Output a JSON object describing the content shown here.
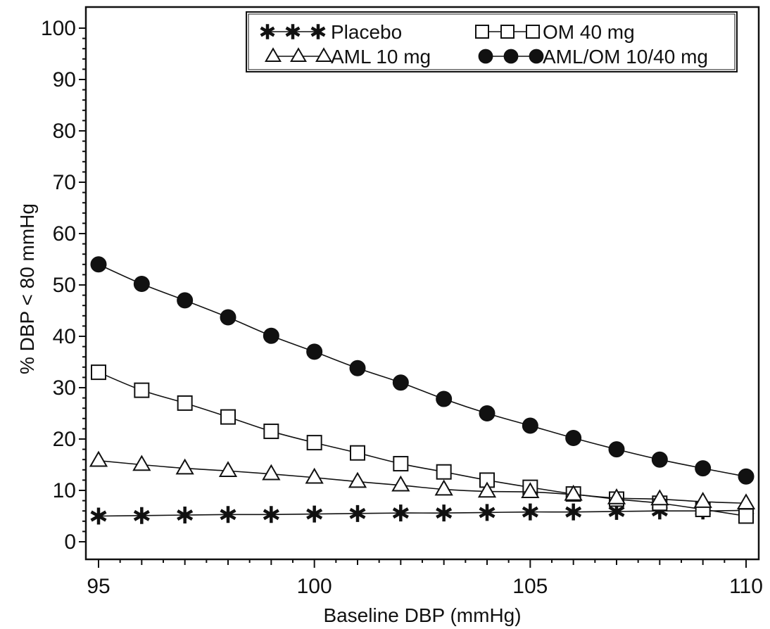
{
  "chart_data": {
    "type": "line",
    "title": "",
    "xlabel": "Baseline DBP (mmHg)",
    "ylabel": "% DBP < 80 mmHg",
    "xlim": [
      95,
      110
    ],
    "ylim": [
      -3,
      104
    ],
    "x_ticks": [
      95,
      100,
      105,
      110
    ],
    "y_ticks": [
      0,
      10,
      20,
      30,
      40,
      50,
      60,
      70,
      80,
      90,
      100
    ],
    "grid": false,
    "legend_position": "top-right",
    "x": [
      95,
      96,
      97,
      98,
      99,
      100,
      101,
      102,
      103,
      104,
      105,
      106,
      107,
      108,
      109,
      110
    ],
    "series": [
      {
        "name": "Placebo",
        "marker": "star",
        "values": [
          5.0,
          5.1,
          5.2,
          5.3,
          5.3,
          5.4,
          5.5,
          5.6,
          5.6,
          5.7,
          5.8,
          5.8,
          5.9,
          6.0,
          6.0,
          6.1
        ],
        "fit": [
          5.2,
          6.2
        ]
      },
      {
        "name": "OM 40 mg",
        "marker": "square",
        "values": [
          33.0,
          29.5,
          27.0,
          24.3,
          21.5,
          19.3,
          17.3,
          15.2,
          13.6,
          12.0,
          10.6,
          9.3,
          8.3,
          7.5,
          6.3,
          5.0
        ],
        "fit": [
          33.0,
          5.2
        ]
      },
      {
        "name": "AML 10 mg",
        "marker": "triangle",
        "values": [
          15.8,
          15.0,
          14.3,
          13.8,
          13.2,
          12.5,
          11.7,
          11.0,
          10.2,
          9.8,
          9.7,
          9.2,
          8.5,
          8.3,
          7.8,
          7.5
        ],
        "fit": [
          15.8,
          7.5
        ]
      },
      {
        "name": "AML/OM 10/40 mg",
        "marker": "circle",
        "values": [
          54.0,
          50.2,
          47.0,
          43.7,
          40.1,
          37.0,
          33.8,
          31.0,
          27.8,
          25.0,
          22.6,
          20.2,
          18.0,
          16.0,
          14.3,
          12.7
        ],
        "fit": [
          54.0,
          12.8
        ]
      }
    ]
  }
}
